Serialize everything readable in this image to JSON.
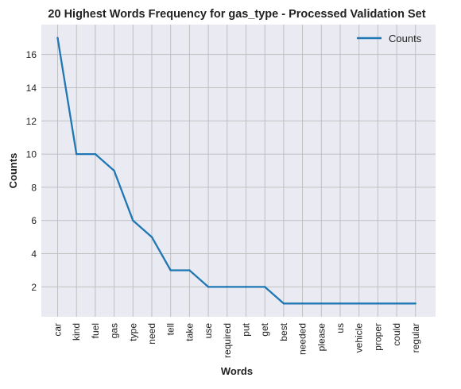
{
  "chart_data": {
    "type": "line",
    "title": "20 Highest Words Frequency for gas_type - Processed Validation Set",
    "xlabel": "Words",
    "ylabel": "Counts",
    "categories": [
      "car",
      "kind",
      "fuel",
      "gas",
      "type",
      "need",
      "tell",
      "take",
      "use",
      "required",
      "put",
      "get",
      "best",
      "needed",
      "please",
      "us",
      "vehicle",
      "proper",
      "could",
      "regular"
    ],
    "series": [
      {
        "name": "Counts",
        "values": [
          17,
          10,
          10,
          9,
          6,
          5,
          3,
          3,
          2,
          2,
          2,
          2,
          1,
          1,
          1,
          1,
          1,
          1,
          1,
          1
        ],
        "color": "#1f77b4"
      }
    ],
    "yticks": [
      2,
      4,
      6,
      8,
      10,
      12,
      14,
      16
    ],
    "ylim": [
      0.2,
      17.8
    ],
    "grid": true,
    "legend_position": "top-right",
    "background_color": "#eaeaf2",
    "grid_color": "#c0c0c0"
  }
}
